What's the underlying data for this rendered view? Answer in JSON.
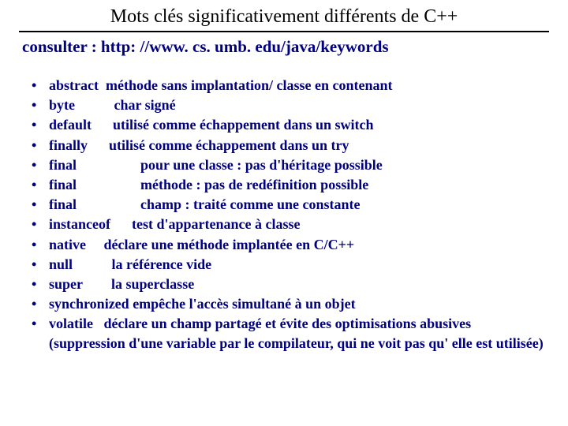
{
  "colors": {
    "text_primary": "#000080",
    "text_title": "#000000",
    "background": "#ffffff",
    "rule": "#000000"
  },
  "typography": {
    "font_family": "Times New Roman",
    "title_fontsize": 24,
    "subtitle_fontsize": 21,
    "body_fontsize": 18,
    "body_weight": "bold"
  },
  "title": "Mots clés significativement différents de C++",
  "subtitle": "consulter : http: //www. cs. umb. edu/java/keywords",
  "items": [
    {
      "keyword": "abstract",
      "description": "méthode sans implantation/ classe en contenant"
    },
    {
      "keyword": "byte",
      "description": "char signé"
    },
    {
      "keyword": "default",
      "description": "utilisé comme échappement dans un switch"
    },
    {
      "keyword": "finally",
      "description": "utilisé comme échappement dans un try"
    },
    {
      "keyword": "final",
      "description": "pour une classe : pas d'héritage possible"
    },
    {
      "keyword": "final",
      "description": "méthode : pas de redéfinition possible"
    },
    {
      "keyword": "final",
      "description": "champ : traité comme une constante"
    },
    {
      "keyword": "instanceof",
      "description": "test d'appartenance à classe"
    },
    {
      "keyword": "native",
      "description": "déclare une méthode implantée en C/C++"
    },
    {
      "keyword": "null",
      "description": "la référence vide"
    },
    {
      "keyword": "super",
      "description": "la superclasse"
    },
    {
      "keyword": "synchronized",
      "description": "empêche l'accès simultané à un objet"
    },
    {
      "keyword": "volatile",
      "description": "déclare un champ partagé et évite des optimisations abusives (suppression d'une variable par le compilateur, qui ne voit pas qu' elle est utilisée)"
    }
  ]
}
